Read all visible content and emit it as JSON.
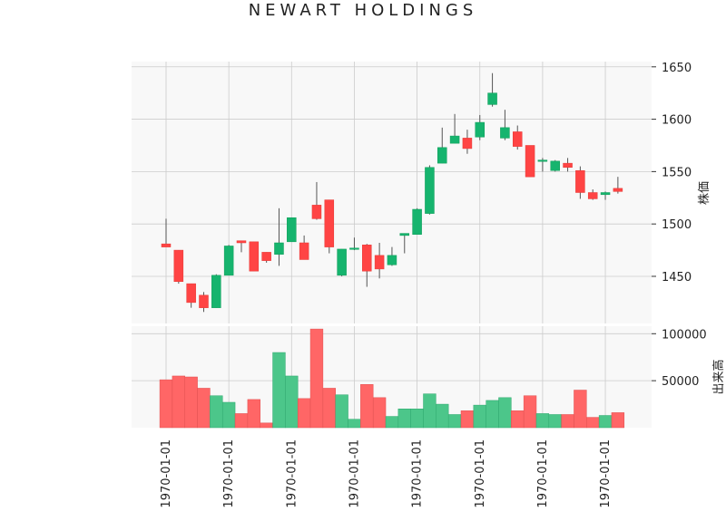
{
  "chart_data": {
    "type": "candlestick",
    "title": "NEWART HOLDINGS",
    "price_panel": {
      "ylabel": "株価",
      "ylim": [
        1405,
        1655
      ],
      "yticks": [
        1450,
        1500,
        1550,
        1600,
        1650
      ],
      "grid": true
    },
    "volume_panel": {
      "ylabel": "出来高",
      "ylim": [
        0,
        108000
      ],
      "yticks": [
        50000,
        100000
      ],
      "grid": true
    },
    "x_tick_labels": [
      "1970-01-01",
      "1970-01-01",
      "1970-01-01",
      "1970-01-01",
      "1970-01-01",
      "1970-01-01",
      "1970-01-01",
      "1970-01-01"
    ],
    "x_tick_positions": [
      0,
      5,
      10,
      15,
      20,
      25,
      30,
      35
    ],
    "colors": {
      "up": "#26a69a",
      "up_fill": "#16b46e",
      "down": "#ef5350",
      "down_fill": "#ff4444",
      "vol_up": "#4cc68a",
      "vol_down": "#ff6666"
    },
    "candles": [
      {
        "open": 1481,
        "high": 1505,
        "low": 1478,
        "close": 1478,
        "volume": 51000
      },
      {
        "open": 1475,
        "high": 1475,
        "low": 1443,
        "close": 1445,
        "volume": 55000
      },
      {
        "open": 1443,
        "high": 1443,
        "low": 1420,
        "close": 1425,
        "volume": 54000
      },
      {
        "open": 1432,
        "high": 1435,
        "low": 1416,
        "close": 1420,
        "volume": 42000
      },
      {
        "open": 1420,
        "high": 1452,
        "low": 1420,
        "close": 1451,
        "volume": 34000
      },
      {
        "open": 1451,
        "high": 1480,
        "low": 1451,
        "close": 1479,
        "volume": 27000
      },
      {
        "open": 1484,
        "high": 1484,
        "low": 1473,
        "close": 1482,
        "volume": 15000
      },
      {
        "open": 1483,
        "high": 1483,
        "low": 1455,
        "close": 1455,
        "volume": 30000
      },
      {
        "open": 1473,
        "high": 1473,
        "low": 1463,
        "close": 1465,
        "volume": 5000
      },
      {
        "open": 1471,
        "high": 1515,
        "low": 1460,
        "close": 1482,
        "volume": 80000
      },
      {
        "open": 1483,
        "high": 1506,
        "low": 1483,
        "close": 1506,
        "volume": 55000
      },
      {
        "open": 1482,
        "high": 1489,
        "low": 1466,
        "close": 1466,
        "volume": 31000
      },
      {
        "open": 1518,
        "high": 1540,
        "low": 1504,
        "close": 1505,
        "volume": 105000
      },
      {
        "open": 1523,
        "high": 1523,
        "low": 1472,
        "close": 1478,
        "volume": 42000
      },
      {
        "open": 1451,
        "high": 1476,
        "low": 1450,
        "close": 1476,
        "volume": 35000
      },
      {
        "open": 1476,
        "high": 1487,
        "low": 1475,
        "close": 1477,
        "volume": 9000
      },
      {
        "open": 1480,
        "high": 1481,
        "low": 1440,
        "close": 1455,
        "volume": 46000
      },
      {
        "open": 1470,
        "high": 1482,
        "low": 1448,
        "close": 1457,
        "volume": 32000
      },
      {
        "open": 1461,
        "high": 1478,
        "low": 1460,
        "close": 1470,
        "volume": 12000
      },
      {
        "open": 1489,
        "high": 1491,
        "low": 1472,
        "close": 1491,
        "volume": 20000
      },
      {
        "open": 1490,
        "high": 1515,
        "low": 1490,
        "close": 1514,
        "volume": 20000
      },
      {
        "open": 1510,
        "high": 1556,
        "low": 1509,
        "close": 1554,
        "volume": 36000
      },
      {
        "open": 1558,
        "high": 1592,
        "low": 1558,
        "close": 1573,
        "volume": 25000
      },
      {
        "open": 1577,
        "high": 1605,
        "low": 1577,
        "close": 1584,
        "volume": 14000
      },
      {
        "open": 1582,
        "high": 1590,
        "low": 1567,
        "close": 1572,
        "volume": 18000
      },
      {
        "open": 1583,
        "high": 1604,
        "low": 1580,
        "close": 1597,
        "volume": 24000
      },
      {
        "open": 1614,
        "high": 1644,
        "low": 1612,
        "close": 1625,
        "volume": 29000
      },
      {
        "open": 1582,
        "high": 1609,
        "low": 1580,
        "close": 1592,
        "volume": 32000
      },
      {
        "open": 1588,
        "high": 1594,
        "low": 1571,
        "close": 1574,
        "volume": 18000
      },
      {
        "open": 1575,
        "high": 1575,
        "low": 1545,
        "close": 1545,
        "volume": 34000
      },
      {
        "open": 1561,
        "high": 1563,
        "low": 1550,
        "close": 1561,
        "volume": 15000
      },
      {
        "open": 1551,
        "high": 1561,
        "low": 1550,
        "close": 1560,
        "volume": 14000
      },
      {
        "open": 1558,
        "high": 1563,
        "low": 1550,
        "close": 1554,
        "volume": 14000
      },
      {
        "open": 1551,
        "high": 1555,
        "low": 1524,
        "close": 1530,
        "volume": 40000
      },
      {
        "open": 1530,
        "high": 1533,
        "low": 1523,
        "close": 1524,
        "volume": 11000
      },
      {
        "open": 1528,
        "high": 1531,
        "low": 1523,
        "close": 1530,
        "volume": 13000
      },
      {
        "open": 1534,
        "high": 1545,
        "low": 1529,
        "close": 1531,
        "volume": 16000
      }
    ]
  }
}
